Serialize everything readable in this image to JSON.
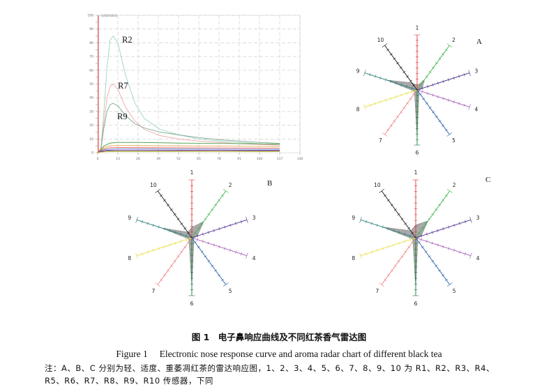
{
  "chart_data": [
    {
      "type": "line",
      "panel": "response-curve",
      "title": "",
      "xlabel": "",
      "ylabel": "",
      "x_ticks": [
        "0",
        "13",
        "26",
        "39",
        "52",
        "65",
        "78",
        "91",
        "104",
        "117",
        "130"
      ],
      "y_ticks": [
        "0",
        "5",
        "10",
        "15",
        "20",
        "25",
        "30",
        "35",
        "40",
        "45",
        "50",
        "55",
        "60",
        "65",
        "70",
        "75",
        "80",
        "85",
        "90",
        "95",
        "100"
      ],
      "xlim": [
        0,
        130
      ],
      "ylim": [
        0,
        100
      ],
      "y_unit_label": "G/G0(G0/G)",
      "grid": true,
      "series": [
        {
          "name": "R2",
          "color": "#9fd3c0",
          "x": [
            0,
            2,
            4,
            6,
            8,
            10,
            13,
            18,
            24,
            30,
            40,
            52,
            65,
            78,
            91,
            104,
            117
          ],
          "y": [
            0,
            3,
            30,
            62,
            82,
            85,
            80,
            56,
            36,
            25,
            17,
            13,
            10,
            8.5,
            7.5,
            6.5,
            5.8
          ]
        },
        {
          "name": "R7",
          "color": "#f2a7a7",
          "x": [
            0,
            2,
            4,
            6,
            8,
            10,
            13,
            18,
            24,
            30,
            40,
            52,
            65,
            78,
            91,
            104,
            117
          ],
          "y": [
            0,
            3,
            22,
            40,
            48,
            50,
            46,
            33,
            23,
            17,
            12.5,
            10,
            8.5,
            7.5,
            6.5,
            6,
            5.5
          ]
        },
        {
          "name": "R9",
          "color": "#7aa98c",
          "x": [
            0,
            2,
            4,
            6,
            8,
            10,
            13,
            18,
            24,
            30,
            40,
            52,
            65,
            78,
            91,
            104,
            117
          ],
          "y": [
            0,
            2,
            18,
            30,
            35,
            36,
            34,
            27,
            21,
            18,
            15,
            13,
            11,
            9.5,
            8.5,
            7.5,
            6.8
          ]
        },
        {
          "name": "",
          "color": "#3c9a3c",
          "x": [
            0,
            4,
            8,
            13,
            26,
            52,
            78,
            104,
            117
          ],
          "y": [
            0,
            5,
            7,
            7.5,
            7.5,
            7,
            6.8,
            6.5,
            6.3
          ]
        },
        {
          "name": "",
          "color": "#d9a441",
          "x": [
            0,
            4,
            8,
            13,
            26,
            52,
            78,
            104,
            117
          ],
          "y": [
            0,
            4,
            5,
            5.3,
            5.2,
            5,
            4.8,
            4.6,
            4.5
          ]
        },
        {
          "name": "",
          "color": "#e05050",
          "x": [
            0,
            4,
            8,
            13,
            26,
            52,
            78,
            104,
            117
          ],
          "y": [
            0,
            3,
            3.6,
            3.8,
            3.7,
            3.6,
            3.5,
            3.4,
            3.3
          ]
        },
        {
          "name": "",
          "color": "#4a72c8",
          "x": [
            0,
            4,
            8,
            13,
            26,
            52,
            78,
            104,
            117
          ],
          "y": [
            0,
            2.2,
            2.6,
            2.8,
            2.8,
            2.7,
            2.6,
            2.5,
            2.5
          ]
        },
        {
          "name": "",
          "color": "#8e44ad",
          "x": [
            0,
            4,
            8,
            13,
            26,
            52,
            78,
            104,
            117
          ],
          "y": [
            0,
            1.5,
            1.9,
            2,
            2,
            1.9,
            1.9,
            1.8,
            1.8
          ]
        },
        {
          "name": "",
          "color": "#222222",
          "x": [
            0,
            4,
            8,
            13,
            26,
            52,
            78,
            104,
            117
          ],
          "y": [
            0,
            1,
            1.2,
            1.3,
            1.3,
            1.3,
            1.2,
            1.2,
            1.2
          ]
        },
        {
          "name": "",
          "color": "#e8e04a",
          "x": [
            0,
            4,
            8,
            13,
            26,
            52,
            78,
            104,
            117
          ],
          "y": [
            0,
            0.6,
            0.8,
            0.9,
            0.9,
            0.9,
            0.9,
            0.8,
            0.8
          ]
        }
      ]
    },
    {
      "type": "radar",
      "panel_label": "A",
      "axes": [
        "1",
        "2",
        "3",
        "4",
        "5",
        "6",
        "7",
        "8",
        "9",
        "10"
      ],
      "max": 10,
      "values": [
        0.8,
        2.2,
        1.0,
        0.3,
        0.6,
        8.5,
        0.8,
        0.6,
        5.8,
        1.6
      ]
    },
    {
      "type": "radar",
      "panel_label": "B",
      "axes": [
        "1",
        "2",
        "3",
        "4",
        "5",
        "6",
        "7",
        "8",
        "9",
        "10"
      ],
      "max": 10,
      "values": [
        1.8,
        3.5,
        1.0,
        0.3,
        0.6,
        8.3,
        0.8,
        0.6,
        5.5,
        1.2
      ]
    },
    {
      "type": "radar",
      "panel_label": "C",
      "axes": [
        "1",
        "2",
        "3",
        "4",
        "5",
        "6",
        "7",
        "8",
        "9",
        "10"
      ],
      "max": 10,
      "values": [
        2.2,
        3.6,
        1.0,
        0.3,
        0.6,
        8.5,
        0.8,
        0.6,
        6.0,
        1.5
      ]
    }
  ],
  "radar_axis_colors": [
    "#e0393e",
    "#3cb44b",
    "#4b2a8c",
    "#a35ab5",
    "#2a5da8",
    "#1a7a3a",
    "#f07f7f",
    "#e6e03c",
    "#2a7a7a",
    "#111111"
  ],
  "radar_fill_color": "#9a9a9a",
  "caption": {
    "cn": "图 1　电子鼻响应曲线及不同红茶香气雷达图",
    "en": "Figure 1　 Electronic nose response curve and aroma radar chart of different black tea",
    "note_line1": "注：A、B、C 分别为轻、适度、重萎凋红茶的雷达响应图，1、2、3、4、5、6、7、8、9、10 为 R1、R2、R3、R4、",
    "note_line2": "R5、R6、R7、R8、R9、R10 传感器，下同"
  }
}
